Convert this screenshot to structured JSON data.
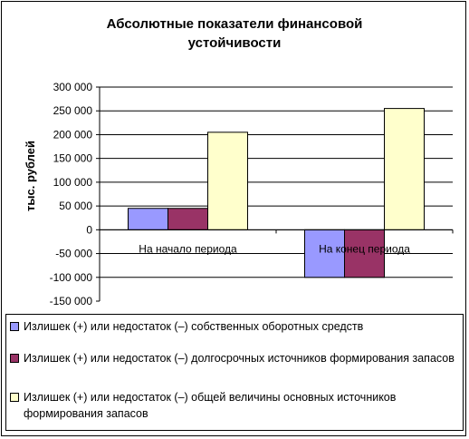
{
  "chart_data": {
    "type": "bar",
    "title_lines": [
      "Абсолютные показатели финансовой",
      "устойчивости"
    ],
    "ylabel": "тыс. рублей",
    "xlabel": "",
    "categories": [
      "На начало периода",
      "На конец периода"
    ],
    "ylim": [
      -150000,
      300000
    ],
    "ytick_step": 50000,
    "ytick_labels": [
      "300 000",
      "250 000",
      "200 000",
      "150 000",
      "100 000",
      "50 000",
      "0",
      "-50 000",
      "-100 000",
      "-150 000"
    ],
    "grid": "horizontal",
    "legend_position": "bottom",
    "series": [
      {
        "name": "Излишек (+) или недостаток (–) собственных оборотных средств",
        "values": [
          45000,
          -100000
        ],
        "color": "#9999ff"
      },
      {
        "name": "Излишек (+) или недостаток (–) долгосрочных источников формирования запасов",
        "values": [
          45000,
          -100000
        ],
        "color": "#993366"
      },
      {
        "name": "Излишек (+) или недостаток (–) общей величины основных источников формирования запасов",
        "values": [
          205000,
          255000
        ],
        "color": "#ffffcc"
      }
    ]
  }
}
